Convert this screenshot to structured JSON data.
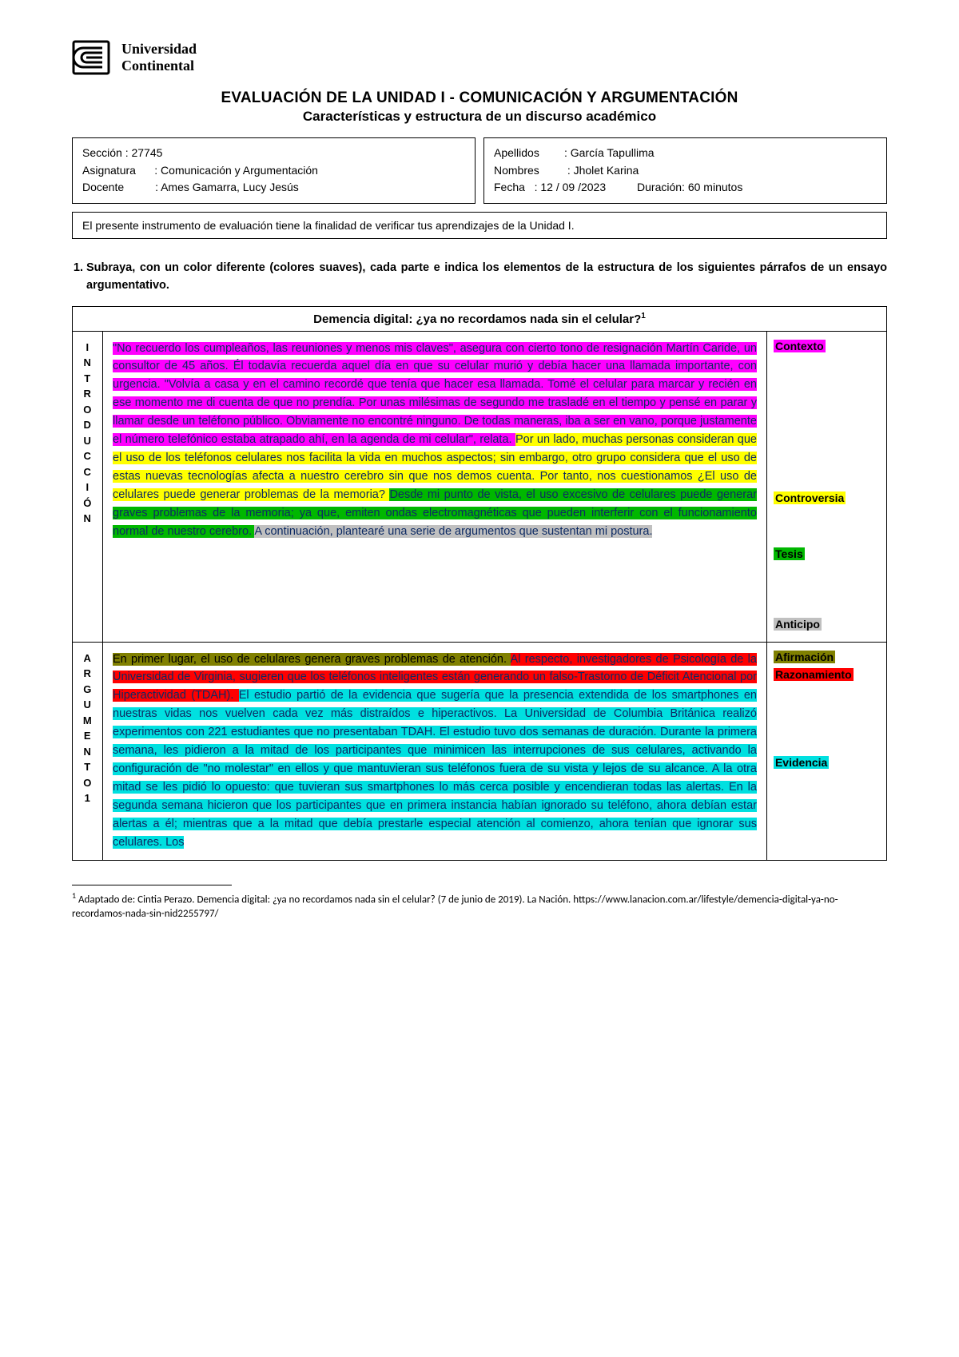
{
  "university": {
    "line1": "Universidad",
    "line2": "Continental"
  },
  "title": "EVALUACIÓN DE LA UNIDAD I - COMUNICACIÓN Y ARGUMENTACIÓN",
  "subtitle": "Características y estructura de un discurso académico",
  "info_left": {
    "seccion_label": "Sección :",
    "seccion": "27745",
    "asignatura_label": "Asignatura",
    "asignatura": ": Comunicación y Argumentación",
    "docente_label": "Docente",
    "docente": ": Ames Gamarra, Lucy Jesús"
  },
  "info_right": {
    "apellidos_label": "Apellidos",
    "apellidos": ": García Tapullima",
    "nombres_label": "Nombres",
    "nombres": ": Jholet Karina",
    "fecha_label": "Fecha",
    "fecha": ": 12 / 09 /2023",
    "duracion_label": "Duración:",
    "duracion": "60 minutos"
  },
  "intro_box": "El presente instrumento de evaluación tiene la finalidad de verificar tus aprendizajes de la Unidad I.",
  "question1": "Subraya, con un color diferente (colores suaves), cada parte e indica los elementos de la estructura de los siguientes párrafos de un ensayo argumentativo.",
  "essay_title": "Demencia digital: ¿ya no recordamos nada sin el celular?",
  "sup_ref": "1",
  "section_labels": {
    "intro": [
      "I",
      "N",
      "T",
      "R",
      "O",
      "D",
      "U",
      "C",
      "C",
      "I",
      "Ó",
      "N"
    ],
    "arg1": [
      "A",
      "R",
      "G",
      "U",
      "M",
      "E",
      "N",
      "T",
      "O",
      "1"
    ]
  },
  "intro_segments": [
    {
      "hl": "hl-magenta",
      "text": "\"No recuerdo los cumpleaños, las reuniones y menos mis claves\", asegura con cierto tono de resignación Martín Caride, un consultor de 45 años. Él todavía recuerda aquel día en que su celular murió y debía hacer una llamada importante, con urgencia. \"Volvía a casa y en el camino recordé que tenía que hacer esa llamada. Tomé el celular para marcar y recién en ese momento me di cuenta de que no prendía. Por unas milésimas de segundo me trasladé en el tiempo y pensé en parar y llamar desde un teléfono público. Obviamente no encontré ninguno. De todas maneras, iba a ser en vano, porque justamente el número telefónico estaba atrapado ahí, en la agenda de mi celular\", relata. "
    },
    {
      "hl": "hl-yellow",
      "text": "Por un lado, muchas personas consideran que el uso de los teléfonos celulares nos facilita la vida en muchos aspectos; sin embargo, otro grupo considera que el uso de estas nuevas tecnologías afecta a nuestro cerebro sin que nos demos cuenta. Por tanto, nos cuestionamos ¿El uso de celulares puede generar problemas de la memoria? "
    },
    {
      "hl": "hl-green",
      "text": "Desde mi punto de vista, el uso excesivo de celulares puede generar graves problemas de la memoria; ya que, emiten ondas electromagnéticas que pueden interferir con el funcionamiento normal de nuestro cerebro. "
    },
    {
      "hl": "hl-gray",
      "text": "A continuación, plantearé una serie de argumentos que sustentan mi postura."
    }
  ],
  "intro_tags": [
    {
      "label": "Contexto",
      "hl": "hl-magenta",
      "gap": 0
    },
    {
      "label": "Controversia",
      "hl": "hl-yellow",
      "gap": 170
    },
    {
      "label": "Tesis",
      "hl": "hl-green",
      "gap": 50
    },
    {
      "label": "Anticipo",
      "hl": "hl-gray",
      "gap": 68
    }
  ],
  "arg_segments": [
    {
      "hl": "hl-olive",
      "text": "En primer lugar, el uso de celulares genera graves problemas de atención. "
    },
    {
      "hl": "hl-red",
      "text": "Al respecto, investigadores de Psicología de la Universidad de Virginia, sugieren que los teléfonos inteligentes están generando un falso-Trastorno de Déficit Atencional por Hiperactividad (TDAH). "
    },
    {
      "hl": "hl-cyan",
      "text": "El estudio partió de la evidencia que sugería que la presencia extendida de los smartphones en nuestras vidas nos vuelven cada vez más distraídos e hiperactivos. La Universidad de Columbia Británica realizó experimentos con 221 estudiantes que no presentaban TDAH. El estudio tuvo dos semanas de duración. Durante la primera semana, les pidieron a la mitad de los participantes que minimicen las interrupciones de sus celulares, activando la configuración de \"no molestar\" en ellos y que mantuvieran sus teléfonos fuera de su vista y lejos de su alcance. A la otra mitad se les pidió lo opuesto: que tuvieran sus smartphones lo más cerca posible y encendieran todas las alertas. En la segunda semana hicieron que los participantes que en primera instancia habían ignorado su teléfono, ahora debían estar alertas a él; mientras que a la mitad que debía prestarle especial atención al comienzo, ahora tenían que ignorar sus celulares. Los"
    }
  ],
  "arg_tags": [
    {
      "label": "Afirmación",
      "hl": "hl-olive",
      "gap": 0
    },
    {
      "label": "Razonamiento",
      "hl": "hl-red",
      "gap": 2
    },
    {
      "label": "Evidencia",
      "hl": "hl-cyan",
      "gap": 90
    }
  ],
  "footnote": {
    "ref": "1",
    "text": " Adaptado de: Cintia Perazo. Demencia digital: ¿ya no recordamos nada sin el celular? (7 de junio de 2019). La Nación. https://www.lanacion.com.ar/lifestyle/demencia-digital-ya-no-recordamos-nada-sin-nid2255797/"
  },
  "colors": {
    "text_body": "#0d2a63",
    "highlights": {
      "contexto": "#ff00ff",
      "controversia": "#ffff00",
      "tesis": "#00b700",
      "anticipo": "#c0c0c0",
      "afirmacion": "#808000",
      "razonamiento": "#ff0000",
      "evidencia": "#00e0e0"
    }
  }
}
